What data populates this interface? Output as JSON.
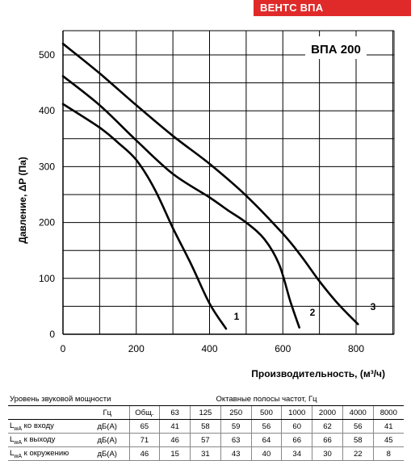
{
  "brand": {
    "title": "ВЕНТС ВПА",
    "color": "#e02a2a"
  },
  "chart_data": {
    "type": "line",
    "title": "ВПА 200",
    "xlabel": "Производительность, (м³/ч)",
    "ylabel": "Давление, ΔP (Па)",
    "xlim": [
      0,
      800
    ],
    "ylim": [
      0,
      500
    ],
    "xticks": [
      0,
      200,
      400,
      600,
      800
    ],
    "yticks": [
      0,
      100,
      200,
      300,
      400,
      500
    ],
    "grid": true,
    "series": [
      {
        "name": "1",
        "points": [
          [
            0,
            412
          ],
          [
            100,
            370
          ],
          [
            150,
            343
          ],
          [
            200,
            312
          ],
          [
            250,
            260
          ],
          [
            300,
            190
          ],
          [
            350,
            125
          ],
          [
            400,
            55
          ],
          [
            445,
            10
          ]
        ]
      },
      {
        "name": "2",
        "points": [
          [
            0,
            462
          ],
          [
            100,
            410
          ],
          [
            200,
            347
          ],
          [
            300,
            287
          ],
          [
            400,
            245
          ],
          [
            450,
            222
          ],
          [
            500,
            200
          ],
          [
            550,
            170
          ],
          [
            590,
            125
          ],
          [
            620,
            60
          ],
          [
            645,
            12
          ]
        ]
      },
      {
        "name": "3",
        "points": [
          [
            0,
            520
          ],
          [
            100,
            467
          ],
          [
            200,
            410
          ],
          [
            300,
            355
          ],
          [
            400,
            305
          ],
          [
            500,
            248
          ],
          [
            600,
            180
          ],
          [
            650,
            140
          ],
          [
            700,
            95
          ],
          [
            750,
            55
          ],
          [
            805,
            18
          ]
        ]
      }
    ],
    "line_color": "#000000",
    "grid_color": "#000000"
  },
  "table": {
    "title": "Уровень звуковой мощности",
    "bands_title": "Октавные полосы частот, Гц",
    "hz": "Гц",
    "headers": [
      "Общ.",
      "63",
      "125",
      "250",
      "500",
      "1000",
      "2000",
      "4000",
      "8000"
    ],
    "rows": [
      {
        "l": "L",
        "sub": "wA",
        "label": " ко входу",
        "unit": "дБ(А)",
        "values": [
          "65",
          "41",
          "58",
          "59",
          "56",
          "60",
          "62",
          "56",
          "41"
        ]
      },
      {
        "l": "L",
        "sub": "wA",
        "label": " к выходу",
        "unit": "дБ(А)",
        "values": [
          "71",
          "46",
          "57",
          "63",
          "64",
          "66",
          "66",
          "58",
          "45"
        ]
      },
      {
        "l": "L",
        "sub": "wA",
        "label": " к окружению",
        "unit": "дБ(А)",
        "values": [
          "46",
          "15",
          "31",
          "43",
          "40",
          "34",
          "30",
          "22",
          "8"
        ]
      }
    ]
  }
}
